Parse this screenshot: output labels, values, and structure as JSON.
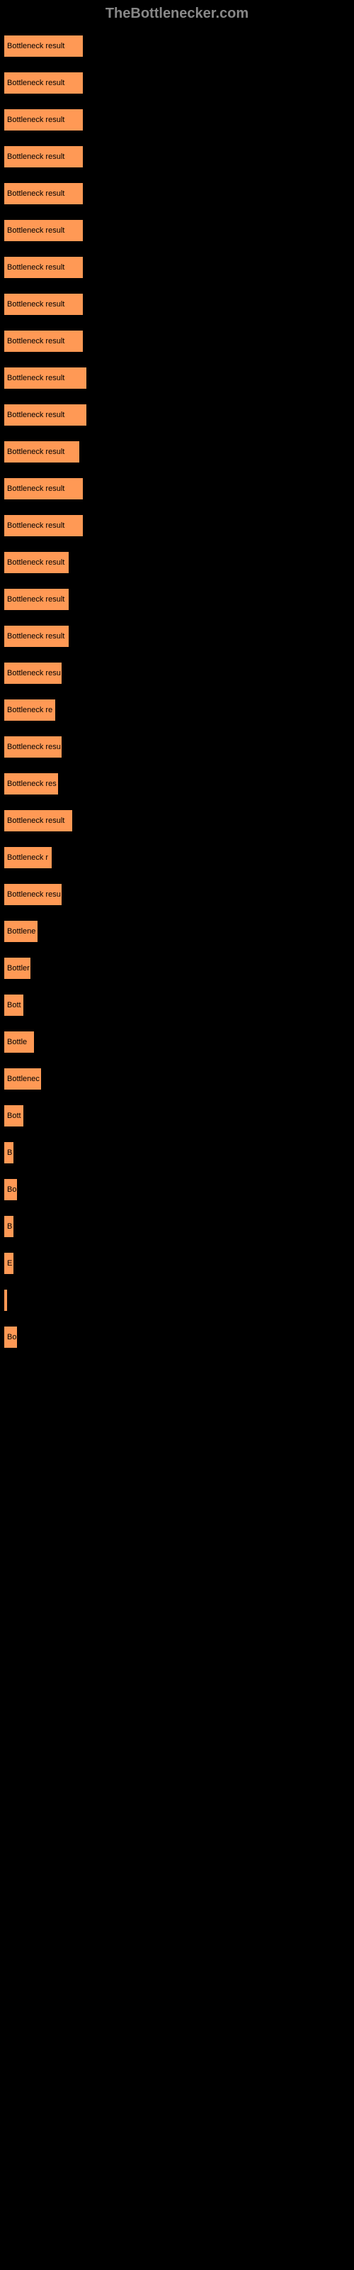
{
  "header": {
    "title": "TheBottlenecker.com"
  },
  "chart": {
    "type": "bar",
    "bar_color": "#ff9955",
    "background_color": "#000000",
    "text_color": "#000000",
    "label_color": "#888888",
    "border_color": "#000000",
    "max_width_percent": 24,
    "bars": [
      {
        "label": "",
        "text": "Bottleneck result",
        "width": 23
      },
      {
        "label": "",
        "text": "Bottleneck result",
        "width": 23
      },
      {
        "label": "",
        "text": "Bottleneck result",
        "width": 23
      },
      {
        "label": "",
        "text": "Bottleneck result",
        "width": 23
      },
      {
        "label": "",
        "text": "Bottleneck result",
        "width": 23
      },
      {
        "label": "",
        "text": "Bottleneck result",
        "width": 23
      },
      {
        "label": "",
        "text": "Bottleneck result",
        "width": 23
      },
      {
        "label": "",
        "text": "Bottleneck result",
        "width": 23
      },
      {
        "label": "",
        "text": "Bottleneck result",
        "width": 23
      },
      {
        "label": "",
        "text": "Bottleneck result",
        "width": 24
      },
      {
        "label": "",
        "text": "Bottleneck result",
        "width": 24
      },
      {
        "label": "",
        "text": "Bottleneck result",
        "width": 22
      },
      {
        "label": "",
        "text": "Bottleneck result",
        "width": 23
      },
      {
        "label": "",
        "text": "Bottleneck result",
        "width": 23
      },
      {
        "label": "",
        "text": "Bottleneck result",
        "width": 19
      },
      {
        "label": "",
        "text": "Bottleneck result",
        "width": 19
      },
      {
        "label": "",
        "text": "Bottleneck result",
        "width": 19
      },
      {
        "label": "",
        "text": "Bottleneck resu",
        "width": 17
      },
      {
        "label": "",
        "text": "Bottleneck re",
        "width": 15
      },
      {
        "label": "",
        "text": "Bottleneck resu",
        "width": 17
      },
      {
        "label": "",
        "text": "Bottleneck res",
        "width": 16
      },
      {
        "label": "",
        "text": "Bottleneck result",
        "width": 20
      },
      {
        "label": "",
        "text": "Bottleneck r",
        "width": 14
      },
      {
        "label": "",
        "text": "Bottleneck resu",
        "width": 17
      },
      {
        "label": "",
        "text": "Bottlene",
        "width": 10
      },
      {
        "label": "",
        "text": "Bottler",
        "width": 8
      },
      {
        "label": "",
        "text": "Bott",
        "width": 6
      },
      {
        "label": "",
        "text": "Bottle",
        "width": 9
      },
      {
        "label": "",
        "text": "Bottlenec",
        "width": 11
      },
      {
        "label": "",
        "text": "Bott",
        "width": 6
      },
      {
        "label": "",
        "text": "B",
        "width": 3
      },
      {
        "label": "",
        "text": "Bo",
        "width": 4
      },
      {
        "label": "",
        "text": "B",
        "width": 3
      },
      {
        "label": "",
        "text": "E",
        "width": 3
      },
      {
        "label": "",
        "text": "",
        "width": 1
      },
      {
        "label": "",
        "text": "Bo",
        "width": 4
      }
    ]
  }
}
